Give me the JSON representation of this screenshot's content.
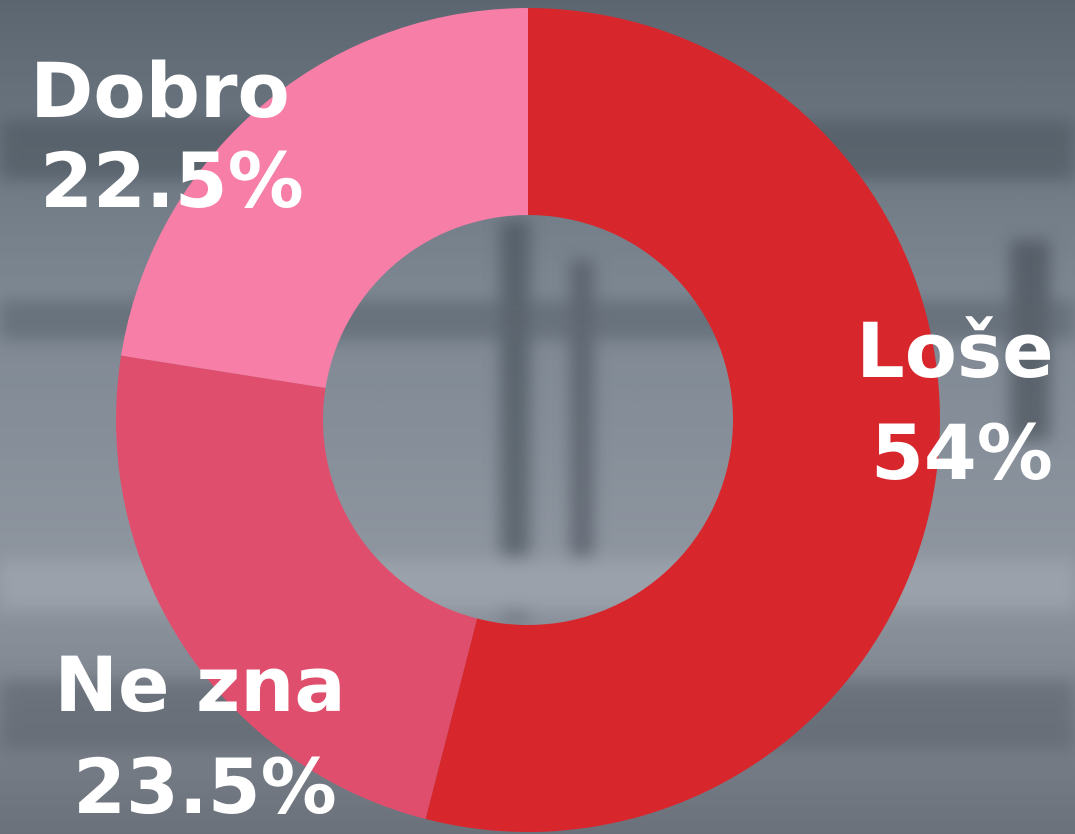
{
  "chart_data": {
    "type": "donut",
    "categories": [
      "Loše",
      "Ne zna",
      "Dobro"
    ],
    "values": [
      54,
      23.5,
      22.5
    ],
    "value_labels": [
      "54%",
      "23.5%",
      "22.5%"
    ],
    "colors": [
      "#d8262d",
      "#df4f6d",
      "#f77ea7"
    ]
  }
}
